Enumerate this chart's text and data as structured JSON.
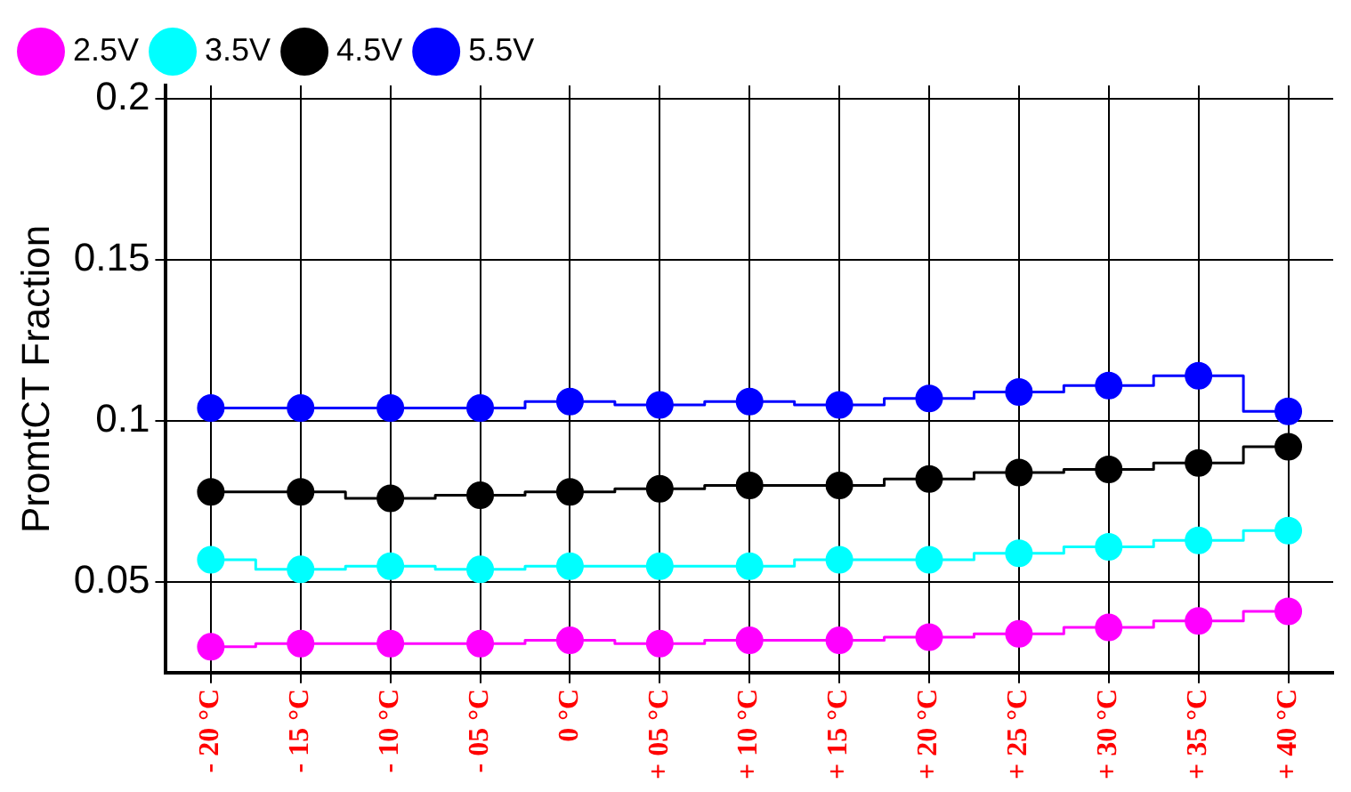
{
  "chart_data": {
    "type": "step",
    "ylabel": "PromtCT Fraction",
    "categories": [
      "- 20 °C",
      "- 15 °C",
      "- 10 °C",
      "- 05 °C",
      "0 °C",
      "+ 05 °C",
      "+ 10 °C",
      "+ 15 °C",
      "+ 20 °C",
      "+ 25 °C",
      "+ 30 °C",
      "+ 35 °C",
      "+ 40 °C"
    ],
    "series": [
      {
        "name": "2.5V",
        "color": "#ff00ff",
        "values": [
          0.03,
          0.031,
          0.031,
          0.031,
          0.032,
          0.031,
          0.032,
          0.032,
          0.033,
          0.034,
          0.036,
          0.038,
          0.041
        ]
      },
      {
        "name": "3.5V",
        "color": "#00ffff",
        "values": [
          0.057,
          0.054,
          0.055,
          0.054,
          0.055,
          0.055,
          0.055,
          0.057,
          0.057,
          0.059,
          0.061,
          0.063,
          0.066
        ]
      },
      {
        "name": "4.5V",
        "color": "#000000",
        "values": [
          0.078,
          0.078,
          0.076,
          0.077,
          0.078,
          0.079,
          0.08,
          0.08,
          0.082,
          0.084,
          0.085,
          0.087,
          0.092
        ]
      },
      {
        "name": "5.5V",
        "color": "#0000ff",
        "values": [
          0.104,
          0.104,
          0.104,
          0.104,
          0.106,
          0.105,
          0.106,
          0.105,
          0.107,
          0.109,
          0.111,
          0.114,
          0.103
        ]
      }
    ],
    "ylim": [
      0.022,
      0.204
    ],
    "yticks": [
      0.05,
      0.1,
      0.15,
      0.2
    ],
    "grid": true,
    "legend": "top left",
    "marker": "circle",
    "line_style": "solid"
  }
}
